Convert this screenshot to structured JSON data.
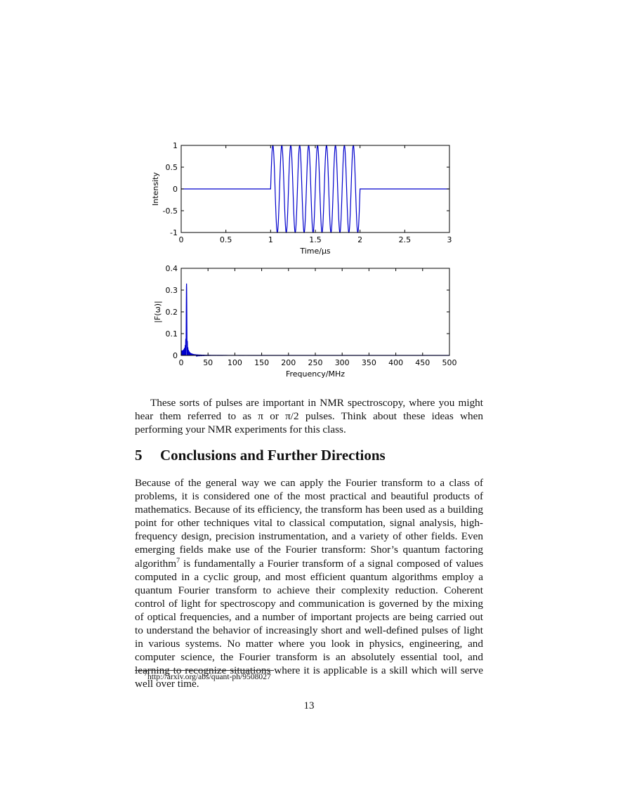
{
  "chart_data": [
    {
      "type": "line",
      "xlabel": "Time/μs",
      "ylabel": "Intensity",
      "xlim": [
        0,
        3
      ],
      "ylim": [
        -1,
        1
      ],
      "xticks": [
        "0",
        "0.5",
        "1",
        "1.5",
        "2",
        "2.5",
        "3"
      ],
      "yticks": [
        "-1",
        "-0.5",
        "0",
        "0.5",
        "1"
      ],
      "grid": false,
      "series": [
        {
          "color": "#0000cc",
          "function": "sine burst",
          "burst_start": 1,
          "burst_end": 2,
          "cycles_in_burst": 10,
          "amplitude": 1,
          "baseline": 0
        }
      ]
    },
    {
      "type": "line",
      "xlabel": "Frequency/MHz",
      "ylabel": "|F(ω)|",
      "xlim": [
        0,
        500
      ],
      "ylim": [
        0,
        0.4
      ],
      "xticks": [
        "0",
        "50",
        "100",
        "150",
        "200",
        "250",
        "300",
        "350",
        "400",
        "450",
        "500"
      ],
      "yticks": [
        "0",
        "0.1",
        "0.2",
        "0.3",
        "0.4"
      ],
      "grid": false,
      "series": [
        {
          "color": "#0000cc",
          "peak_frequency": 10,
          "peak_value": 0.33
        }
      ]
    }
  ],
  "text": {
    "para1": "These sorts of pulses are important in NMR spectroscopy, where you might hear them referred to as π or π/2 pulses. Think about these ideas when performing your NMR experiments for this class.",
    "section_number": "5",
    "section_title": "Conclusions and Further Directions",
    "para2_a": "Because of the general way we can apply the Fourier transform to a class of problems, it is considered one of the most practical and beautiful products of mathematics. Because of its efficiency, the transform has been used as a building point for other techniques vital to classical computation, signal analysis, high-frequency design, precision instrumentation, and a variety of other fields. Even emerging fields make use of the Fourier transform: Shor’s quantum factoring algorithm",
    "footnote_mark": "7",
    "para2_b": " is fundamentally a Fourier transform of a signal composed of values computed in a cyclic group, and most efficient quantum algorithms employ a quantum Fourier transform to achieve their complexity reduction. Coherent control of light for spectroscopy and communication is governed by the mixing of optical frequencies, and a number of important projects are being carried out to understand the behavior of increasingly short and well-defined pulses of light in various systems. No matter where you look in physics, engineering, and computer science, the Fourier transform is an absolutely essential tool, and learning to recognize situations where it is applicable is a skill which will serve well over time.",
    "footnote_text": "http://arxiv.org/abs/quant-ph/9508027",
    "page_number": "13"
  }
}
